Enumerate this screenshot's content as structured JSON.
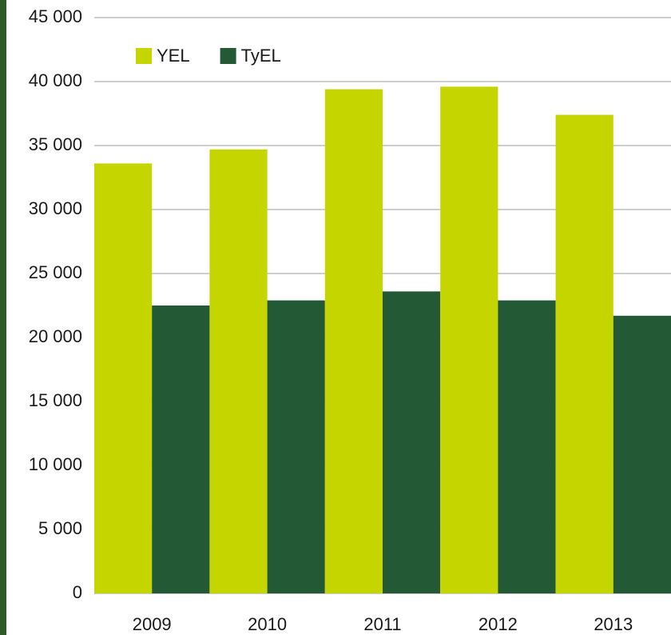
{
  "chart_data": {
    "type": "bar",
    "categories": [
      "2009",
      "2010",
      "2011",
      "2012",
      "2013"
    ],
    "series": [
      {
        "name": "YEL",
        "color": "#c5d500",
        "values": [
          33600,
          34700,
          39400,
          39600,
          37400
        ]
      },
      {
        "name": "TyEL",
        "color": "#235935",
        "values": [
          22500,
          22900,
          23600,
          22900,
          21700
        ]
      }
    ],
    "ylim": [
      0,
      45000
    ],
    "yticks": [
      0,
      {
        "value": 5000,
        "label": "5 000"
      },
      {
        "value": 10000,
        "label": "10 000"
      },
      {
        "value": 15000,
        "label": "15 000"
      },
      {
        "value": 20000,
        "label": "20 000"
      },
      {
        "value": 25000,
        "label": "25 000"
      },
      {
        "value": 30000,
        "label": "30 000"
      },
      {
        "value": 35000,
        "label": "35 000"
      },
      {
        "value": 40000,
        "label": "40 000"
      },
      {
        "value": 45000,
        "label": "45 000"
      }
    ],
    "grid": true,
    "legend": "top-left"
  }
}
